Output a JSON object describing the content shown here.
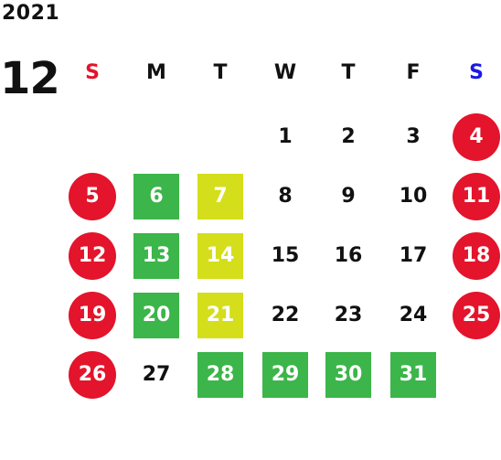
{
  "calendar": {
    "year": "2021",
    "month": "12",
    "weekdays": [
      {
        "label": "S",
        "color": "#e3142b"
      },
      {
        "label": "M",
        "color": "#111111"
      },
      {
        "label": "T",
        "color": "#111111"
      },
      {
        "label": "W",
        "color": "#111111"
      },
      {
        "label": "T",
        "color": "#111111"
      },
      {
        "label": "F",
        "color": "#111111"
      },
      {
        "label": "S",
        "color": "#1a1ae6"
      }
    ],
    "days": [
      {
        "day": "1",
        "col": 3,
        "row": 0,
        "style": "plain"
      },
      {
        "day": "2",
        "col": 4,
        "row": 0,
        "style": "plain"
      },
      {
        "day": "3",
        "col": 5,
        "row": 0,
        "style": "plain"
      },
      {
        "day": "4",
        "col": 6,
        "row": 0,
        "style": "holiday"
      },
      {
        "day": "5",
        "col": 0,
        "row": 1,
        "style": "holiday"
      },
      {
        "day": "6",
        "col": 1,
        "row": 1,
        "style": "green"
      },
      {
        "day": "7",
        "col": 2,
        "row": 1,
        "style": "yellow"
      },
      {
        "day": "8",
        "col": 3,
        "row": 1,
        "style": "plain"
      },
      {
        "day": "9",
        "col": 4,
        "row": 1,
        "style": "plain"
      },
      {
        "day": "10",
        "col": 5,
        "row": 1,
        "style": "plain"
      },
      {
        "day": "11",
        "col": 6,
        "row": 1,
        "style": "holiday"
      },
      {
        "day": "12",
        "col": 0,
        "row": 2,
        "style": "holiday"
      },
      {
        "day": "13",
        "col": 1,
        "row": 2,
        "style": "green"
      },
      {
        "day": "14",
        "col": 2,
        "row": 2,
        "style": "yellow"
      },
      {
        "day": "15",
        "col": 3,
        "row": 2,
        "style": "plain"
      },
      {
        "day": "16",
        "col": 4,
        "row": 2,
        "style": "plain"
      },
      {
        "day": "17",
        "col": 5,
        "row": 2,
        "style": "plain"
      },
      {
        "day": "18",
        "col": 6,
        "row": 2,
        "style": "holiday"
      },
      {
        "day": "19",
        "col": 0,
        "row": 3,
        "style": "holiday"
      },
      {
        "day": "20",
        "col": 1,
        "row": 3,
        "style": "green"
      },
      {
        "day": "21",
        "col": 2,
        "row": 3,
        "style": "yellow"
      },
      {
        "day": "22",
        "col": 3,
        "row": 3,
        "style": "plain"
      },
      {
        "day": "23",
        "col": 4,
        "row": 3,
        "style": "plain"
      },
      {
        "day": "24",
        "col": 5,
        "row": 3,
        "style": "plain"
      },
      {
        "day": "25",
        "col": 6,
        "row": 3,
        "style": "holiday"
      },
      {
        "day": "26",
        "col": 0,
        "row": 4,
        "style": "holiday"
      },
      {
        "day": "27",
        "col": 1,
        "row": 4,
        "style": "plain"
      },
      {
        "day": "28",
        "col": 2,
        "row": 4,
        "style": "green"
      },
      {
        "day": "29",
        "col": 3,
        "row": 4,
        "style": "green"
      },
      {
        "day": "30",
        "col": 4,
        "row": 4,
        "style": "green"
      },
      {
        "day": "31",
        "col": 5,
        "row": 4,
        "style": "green"
      }
    ]
  },
  "colors": {
    "holiday": "#e3142b",
    "green": "#3cb54a",
    "yellow": "#d4de1a",
    "text": "#111111",
    "sunday": "#e3142b",
    "saturday": "#1a1ae6"
  }
}
